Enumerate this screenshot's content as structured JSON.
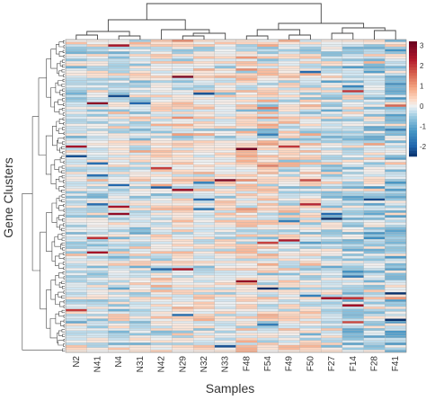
{
  "chart_data": {
    "type": "heatmap",
    "title": "",
    "xlabel": "Samples",
    "ylabel": "Gene Clusters",
    "columns": [
      "N2",
      "N41",
      "N4",
      "N31",
      "N42",
      "N29",
      "N32",
      "N33",
      "F48",
      "F54",
      "F49",
      "F50",
      "F27",
      "F14",
      "F28",
      "F41"
    ],
    "row_count": 130,
    "value_range": [
      -2.5,
      3.2
    ],
    "legend": {
      "position": "right",
      "ticks": [
        3,
        2,
        1,
        0,
        -1,
        -2
      ],
      "colors": [
        "#08306b",
        "#2166ac",
        "#4393c3",
        "#92c5de",
        "#d1e5f0",
        "#f7f7f7",
        "#fddbc7",
        "#f4a582",
        "#d6604d",
        "#b2182b",
        "#67001f"
      ]
    },
    "dendrograms": {
      "columns": "top",
      "rows": "left"
    },
    "grid": true,
    "cell_border_color": "#b0b0b0"
  }
}
